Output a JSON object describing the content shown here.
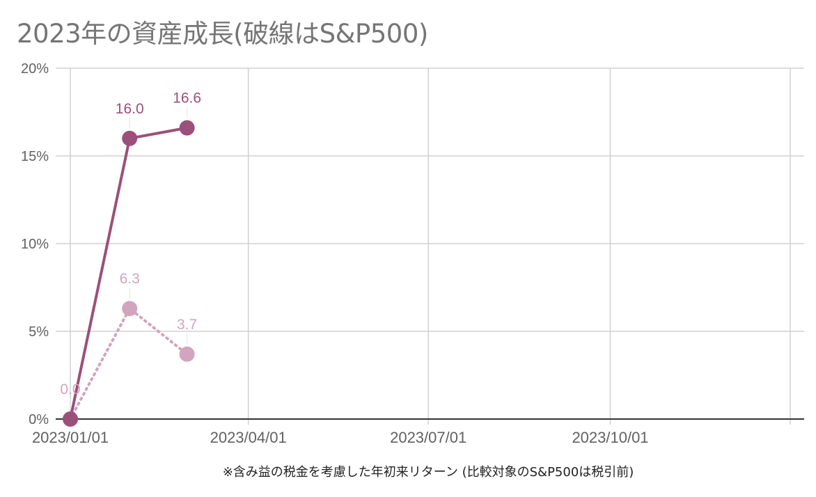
{
  "chart_data": {
    "type": "line",
    "title": "2023年の資産成長(破線はS&P500)",
    "xlabel": "※含み益の税金を考慮した年初来リターン (比較対象のS&P500は税引前)",
    "ylabel": "",
    "x_type": "date",
    "xlim": [
      "2023-01-01",
      "2023-12-31"
    ],
    "ylim": [
      0,
      20
    ],
    "y_ticks": [
      0,
      5,
      10,
      15,
      20
    ],
    "y_tick_labels": [
      "0%",
      "5%",
      "10%",
      "15%",
      "20%"
    ],
    "x_ticks": [
      "2023-01-01",
      "2023-04-01",
      "2023-07-01",
      "2023-10-01",
      "2023-12-31"
    ],
    "x_tick_labels": [
      "2023/01/01",
      "2023/04/01",
      "2023/07/01",
      "2023/10/01",
      ""
    ],
    "grid": true,
    "series": [
      {
        "style": "solid",
        "color": "#9c4f7a",
        "x": [
          "2023-01-01",
          "2023-01-31",
          "2023-03-01"
        ],
        "values": [
          0.0,
          16.0,
          16.6
        ],
        "labels": [
          "",
          "16.0",
          "16.6"
        ]
      },
      {
        "style": "dotted",
        "color": "#d0a5bd",
        "x": [
          "2023-01-01",
          "2023-01-31",
          "2023-03-01"
        ],
        "values": [
          0.0,
          6.3,
          3.7
        ],
        "labels": [
          "0.0",
          "6.3",
          "3.7"
        ]
      }
    ]
  }
}
